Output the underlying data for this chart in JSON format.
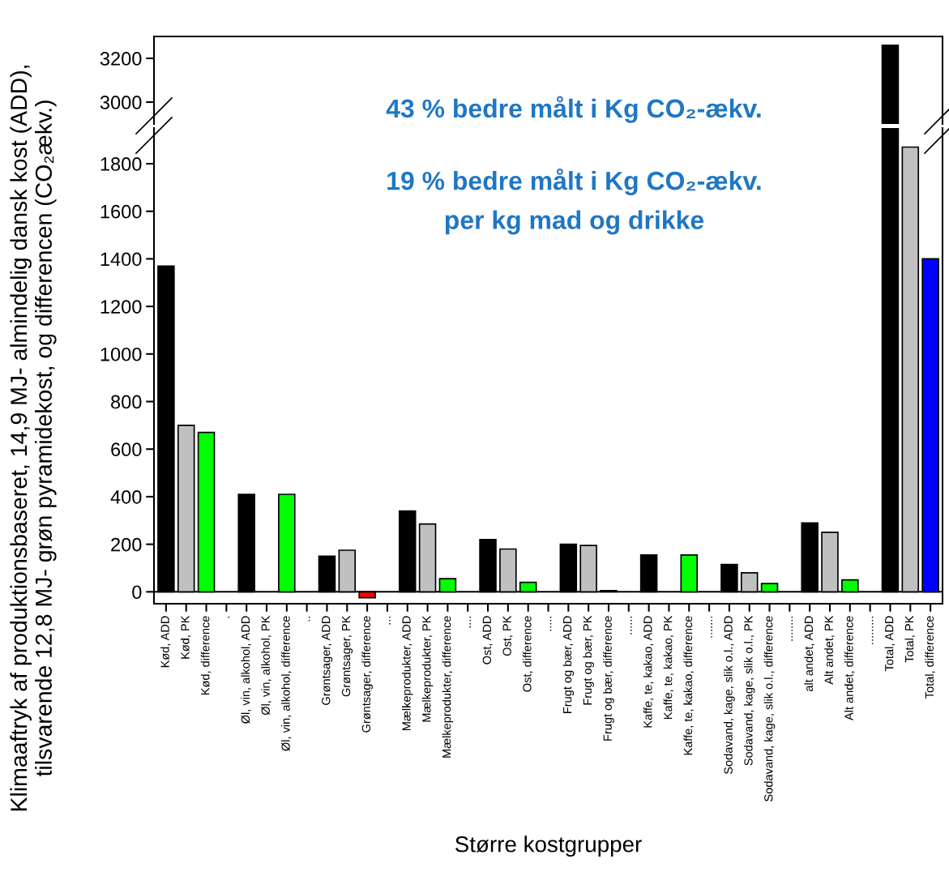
{
  "chart_data": [
    {
      "type": "bar",
      "values": [
        null,
        null,
        null,
        null,
        null,
        null,
        null,
        null,
        null,
        null,
        null,
        null,
        null,
        null,
        null,
        null,
        null,
        null,
        null,
        null,
        null,
        null,
        null,
        null,
        null,
        null,
        null,
        null,
        null,
        null,
        null,
        null,
        null,
        null,
        null,
        null,
        3260,
        null,
        null
      ],
      "colors": [
        "#000000",
        "#c0c0c0",
        "#00ff00",
        "#ffffff",
        "#000000",
        "#c0c0c0",
        "#00ff00",
        "#ffffff",
        "#000000",
        "#c0c0c0",
        "#ff0000",
        "#ffffff",
        "#000000",
        "#c0c0c0",
        "#00ff00",
        "#ffffff",
        "#000000",
        "#c0c0c0",
        "#00ff00",
        "#ffffff",
        "#000000",
        "#c0c0c0",
        "#00ff00",
        "#ffffff",
        "#000000",
        "#c0c0c0",
        "#00ff00",
        "#ffffff",
        "#000000",
        "#c0c0c0",
        "#00ff00",
        "#ffffff",
        "#000000",
        "#c0c0c0",
        "#00ff00",
        "#ffffff",
        "#000000",
        "#c0c0c0",
        "#0000ff"
      ],
      "ylim": [
        2900,
        3300
      ],
      "yticks": [
        3000,
        3200
      ],
      "tick_labels": "y",
      "annotations": [
        "43 % bedre målt i Kg CO₂-ækv."
      ]
    },
    {
      "type": "bar",
      "xlabel": "Større kostgrupper",
      "ylabel": "Klimaaftryk af produktionsbaseret, 14,9 MJ- almindelig dansk kost (ADD),\ntilsvarende 12,8 MJ- grøn pyramidekost, og differencen (CO₂ækv.)",
      "categories": [
        "Kød, ADD",
        "Kød, PK",
        "Kød, difference",
        ".",
        "Øl, vin, alkohol, ADD",
        "Øl, vin, alkohol, PK",
        "Øl, vin, alkohol, difference",
        "..",
        "Grøntsager, ADD",
        "Grøntsager, PK",
        "Grøntsager, difference",
        "...",
        "Mælkeprodukter, ADD",
        "Mælkeprodukter, PK",
        "Mælkeprodukter, difference",
        "....",
        "Ost, ADD",
        "Ost, PK",
        "Ost, difference",
        ".....",
        "Frugt og bær, ADD",
        "Frugt og bær, PK",
        "Frugt og bær, difference",
        "......",
        "Kaffe, te, kakao, ADD",
        "Kaffe, te, kakao, PK",
        "Kaffe, te, kakao, difference",
        ".......",
        "Sodavand, kage, slik o.l., ADD",
        "Sodavand, kage, slik o.l., PK",
        "Sodavand, kage, slik o.l., difference",
        "........",
        "alt andet, ADD",
        "Alt andet, PK",
        "Alt andet, difference",
        ".........",
        "Total, ADD",
        "Total, PK",
        "Total, difference"
      ],
      "values": [
        1370,
        700,
        670,
        null,
        410,
        null,
        410,
        null,
        150,
        175,
        -25,
        null,
        340,
        285,
        55,
        null,
        220,
        180,
        40,
        null,
        200,
        195,
        5,
        null,
        155,
        null,
        155,
        null,
        115,
        80,
        35,
        null,
        290,
        250,
        50,
        null,
        null,
        1870,
        1400
      ],
      "colors": [
        "#000000",
        "#c0c0c0",
        "#00ff00",
        "#ffffff",
        "#000000",
        "#c0c0c0",
        "#00ff00",
        "#ffffff",
        "#000000",
        "#c0c0c0",
        "#ff0000",
        "#ffffff",
        "#000000",
        "#c0c0c0",
        "#00ff00",
        "#ffffff",
        "#000000",
        "#c0c0c0",
        "#00ff00",
        "#ffffff",
        "#000000",
        "#c0c0c0",
        "#00ff00",
        "#ffffff",
        "#000000",
        "#c0c0c0",
        "#00ff00",
        "#ffffff",
        "#000000",
        "#c0c0c0",
        "#00ff00",
        "#ffffff",
        "#000000",
        "#c0c0c0",
        "#00ff00",
        "#ffffff",
        "#000000",
        "#c0c0c0",
        "#0000ff"
      ],
      "ylim": [
        -50,
        1950
      ],
      "yticks": [
        0,
        200,
        400,
        600,
        800,
        1000,
        1200,
        1400,
        1600,
        1800
      ],
      "ref_lines": [
        {
          "axis": "y",
          "value": 0
        }
      ],
      "annotations": [
        "19 % bedre målt i Kg CO₂-ækv.\nper kg mad og drikke"
      ]
    }
  ]
}
